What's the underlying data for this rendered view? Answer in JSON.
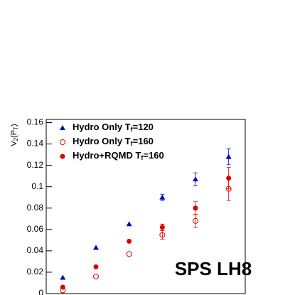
{
  "chart_data": {
    "type": "scatter",
    "ylabel": [
      "V",
      "2",
      "(P",
      "T",
      ")"
    ],
    "annotation": "SPS LH8",
    "xlim": [
      0,
      1.2
    ],
    "ylim": [
      0,
      0.163
    ],
    "yticks": [
      0,
      0.02,
      0.04,
      0.06,
      0.08,
      0.1,
      0.12,
      0.14,
      0.16
    ],
    "x": [
      0.1,
      0.3,
      0.5,
      0.7,
      0.9,
      1.1
    ],
    "series": [
      {
        "name": [
          "Hydro Only T",
          "f",
          "=120"
        ],
        "color": "#0000cc",
        "marker": "triangle",
        "values": [
          0.015,
          0.043,
          0.065,
          0.09,
          0.107,
          0.128
        ],
        "errors": [
          null,
          null,
          null,
          0.003,
          0.006,
          0.0075
        ]
      },
      {
        "name": [
          "Hydro Only T",
          "f",
          "=160"
        ],
        "color": "#dd0000",
        "marker": "open-circle",
        "values": [
          0.003,
          0.016,
          0.037,
          0.055,
          0.068,
          0.098
        ],
        "errors": [
          null,
          null,
          null,
          0.004,
          0.006,
          0.011
        ]
      },
      {
        "name": [
          "Hydro+RQMD T",
          "f",
          "=160"
        ],
        "color": "#dd0000",
        "marker": "circle",
        "values": [
          0.006,
          0.025,
          0.049,
          0.062,
          0.08,
          0.108
        ],
        "errors": [
          null,
          null,
          null,
          0.003,
          0.006,
          0.01
        ]
      }
    ]
  }
}
